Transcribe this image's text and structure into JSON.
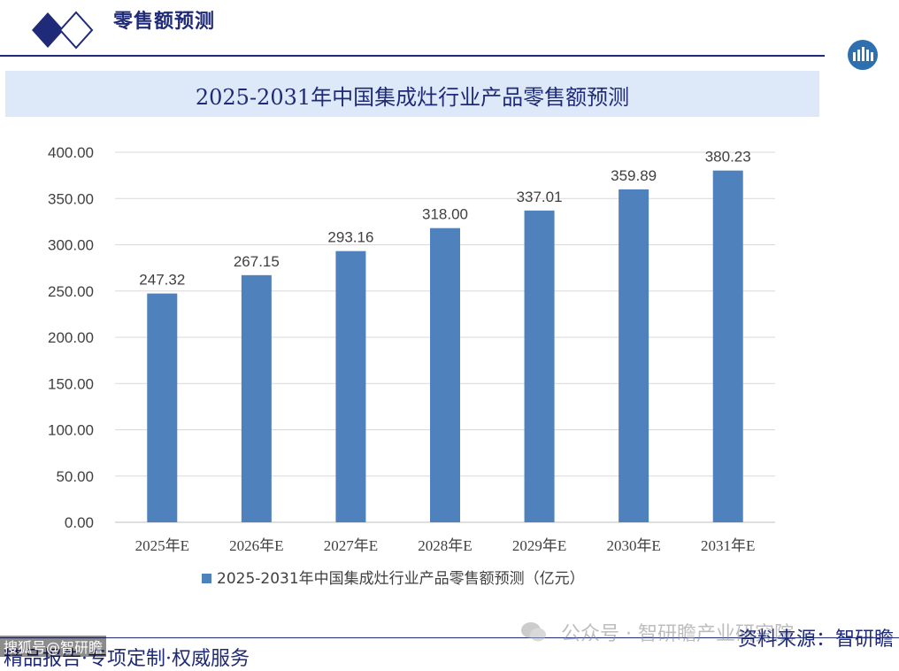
{
  "header": {
    "title": "零售额预测"
  },
  "title_band": {
    "text": "2025-2031年中国集成灶行业产品零售额预测"
  },
  "chart_data": {
    "type": "bar",
    "categories": [
      "2025年E",
      "2026年E",
      "2027年E",
      "2028年E",
      "2029年E",
      "2030年E",
      "2031年E"
    ],
    "series": [
      {
        "name": "2025-2031年中国集成灶行业产品零售额预测（亿元）",
        "values": [
          247.32,
          267.15,
          293.16,
          318.0,
          337.01,
          359.89,
          380.23
        ]
      }
    ],
    "ylim": [
      0,
      400
    ],
    "yticks": [
      0,
      50,
      100,
      150,
      200,
      250,
      300,
      350,
      400
    ],
    "ytick_labels": [
      "0.00",
      "50.00",
      "100.00",
      "150.00",
      "200.00",
      "250.00",
      "300.00",
      "350.00",
      "400.00"
    ],
    "data_labels": [
      "247.32",
      "267.15",
      "293.16",
      "318.00",
      "337.01",
      "359.89",
      "380.23"
    ],
    "grid": true,
    "legend": "bottom",
    "bar_color": "#4f81bd"
  },
  "footer": {
    "left_text": "精品报告·专项定制·权威服务",
    "right_text": "资料来源：智研瞻",
    "watermark_text": "公众号 · 智研瞻产业研究院",
    "stamp_text": "搜狐号@智研瞻"
  },
  "colors": {
    "brand": "#1f2a78",
    "band": "#dde9f8",
    "bar": "#4f81bd",
    "grid": "#d9d9d9"
  }
}
